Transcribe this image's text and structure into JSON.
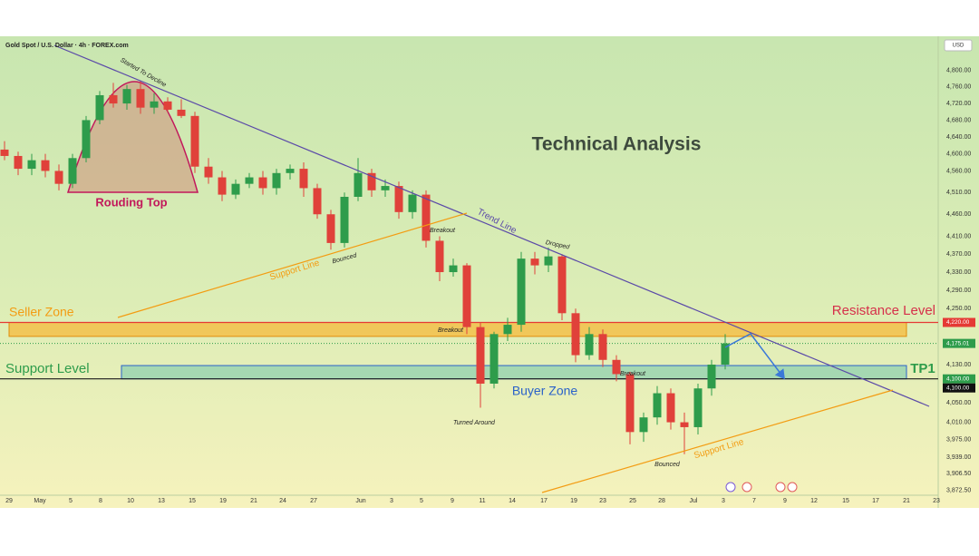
{
  "chart_data": {
    "type": "candlestick",
    "symbol": "Gold Spot / U.S. Dollar · 4h · FOREX.com",
    "currency": "USD",
    "heading": "Technical Analysis",
    "log_scale": true,
    "grid": false,
    "up_color": "#2e9c4b",
    "down_color": "#e0413a",
    "ylim": [
      3856,
      4885
    ],
    "yticks": [
      {
        "value": 4800,
        "label": "4,800.00"
      },
      {
        "value": 4760,
        "label": "4,760.00"
      },
      {
        "value": 4720,
        "label": "4,720.00"
      },
      {
        "value": 4680,
        "label": "4,680.00"
      },
      {
        "value": 4640,
        "label": "4,640.00"
      },
      {
        "value": 4600,
        "label": "4,600.00"
      },
      {
        "value": 4560,
        "label": "4,560.00"
      },
      {
        "value": 4510,
        "label": "4,510.00"
      },
      {
        "value": 4460,
        "label": "4,460.00"
      },
      {
        "value": 4410,
        "label": "4,410.00"
      },
      {
        "value": 4370,
        "label": "4,370.00"
      },
      {
        "value": 4330,
        "label": "4,330.00"
      },
      {
        "value": 4290,
        "label": "4,290.00"
      },
      {
        "value": 4250,
        "label": "4,250.00"
      },
      {
        "value": 4130,
        "label": "4,130.00"
      },
      {
        "value": 4050,
        "label": "4,050.00"
      },
      {
        "value": 4010,
        "label": "4,010.00"
      },
      {
        "value": 3975,
        "label": "3,975.00"
      },
      {
        "value": 3939,
        "label": "3,939.00"
      },
      {
        "value": 3906.5,
        "label": "3,906.50"
      },
      {
        "value": 3872.5,
        "label": "3,872.50"
      }
    ],
    "xlim": [
      0,
      103.5
    ],
    "xticks": [
      {
        "value": 1.0,
        "label": "29"
      },
      {
        "value": 4.4,
        "label": "May"
      },
      {
        "value": 7.8,
        "label": "5"
      },
      {
        "value": 11.1,
        "label": "8"
      },
      {
        "value": 14.4,
        "label": "10"
      },
      {
        "value": 17.8,
        "label": "13"
      },
      {
        "value": 21.2,
        "label": "15"
      },
      {
        "value": 24.6,
        "label": "19"
      },
      {
        "value": 28.0,
        "label": "21"
      },
      {
        "value": 31.2,
        "label": "24"
      },
      {
        "value": 34.6,
        "label": "27"
      },
      {
        "value": 39.8,
        "label": "Jun"
      },
      {
        "value": 43.2,
        "label": "3"
      },
      {
        "value": 46.5,
        "label": "5"
      },
      {
        "value": 49.9,
        "label": "9"
      },
      {
        "value": 53.2,
        "label": "11"
      },
      {
        "value": 56.5,
        "label": "14"
      },
      {
        "value": 60.0,
        "label": "17"
      },
      {
        "value": 63.3,
        "label": "19"
      },
      {
        "value": 66.5,
        "label": "23"
      },
      {
        "value": 69.8,
        "label": "25"
      },
      {
        "value": 73.0,
        "label": "28"
      },
      {
        "value": 76.5,
        "label": "Jul"
      },
      {
        "value": 79.8,
        "label": "3"
      },
      {
        "value": 83.2,
        "label": "7"
      },
      {
        "value": 86.6,
        "label": "9"
      },
      {
        "value": 89.8,
        "label": "12"
      },
      {
        "value": 93.3,
        "label": "15"
      },
      {
        "value": 96.6,
        "label": "17"
      },
      {
        "value": 100.0,
        "label": "21"
      },
      {
        "value": 103.3,
        "label": "23"
      }
    ],
    "candles": {
      "x": [
        0.5,
        2,
        3.5,
        5,
        6.5,
        8,
        9.5,
        11,
        12.5,
        14,
        15.5,
        17,
        18.5,
        20,
        21.5,
        23,
        24.5,
        26,
        27.5,
        29,
        30.5,
        32,
        33.5,
        35,
        36.5,
        38,
        39.5,
        41,
        42.5,
        44,
        45.5,
        47,
        48.5,
        50,
        51.5,
        53,
        54.5,
        56,
        57.5,
        59,
        60.5,
        62,
        63.5,
        65,
        66.5,
        68,
        69.5,
        71,
        72.5,
        74,
        75.5,
        77,
        78.5,
        80
      ],
      "open": [
        4610,
        4595,
        4565,
        4585,
        4560,
        4530,
        4590,
        4680,
        4740,
        4720,
        4755,
        4710,
        4725,
        4705,
        4690,
        4570,
        4545,
        4505,
        4530,
        4545,
        4520,
        4555,
        4565,
        4520,
        4460,
        4395,
        4500,
        4555,
        4515,
        4525,
        4465,
        4505,
        4400,
        4330,
        4345,
        4210,
        4090,
        4195,
        4215,
        4360,
        4345,
        4365,
        4240,
        4150,
        4195,
        4140,
        4110,
        3990,
        4020,
        4070,
        4010,
        4000,
        4080,
        4130
      ],
      "high": [
        4630,
        4605,
        4600,
        4600,
        4575,
        4600,
        4690,
        4750,
        4770,
        4765,
        4775,
        4745,
        4735,
        4730,
        4700,
        4590,
        4560,
        4540,
        4555,
        4560,
        4565,
        4575,
        4580,
        4530,
        4470,
        4510,
        4590,
        4565,
        4540,
        4535,
        4515,
        4515,
        4410,
        4360,
        4350,
        4220,
        4200,
        4230,
        4375,
        4375,
        4385,
        4370,
        4250,
        4210,
        4205,
        4150,
        4115,
        4030,
        4085,
        4080,
        4030,
        4090,
        4140,
        4195
      ],
      "low": [
        4585,
        4550,
        4550,
        4545,
        4515,
        4520,
        4580,
        4670,
        4710,
        4705,
        4695,
        4695,
        4700,
        4685,
        4555,
        4530,
        4490,
        4495,
        4520,
        4505,
        4505,
        4540,
        4500,
        4450,
        4380,
        4385,
        4490,
        4500,
        4500,
        4450,
        4450,
        4385,
        4310,
        4320,
        4195,
        4040,
        4080,
        4180,
        4200,
        4325,
        4330,
        4225,
        4135,
        4140,
        4125,
        4095,
        3965,
        3970,
        4005,
        3995,
        3945,
        3985,
        4065,
        4120
      ],
      "close": [
        4595,
        4565,
        4585,
        4560,
        4530,
        4590,
        4680,
        4740,
        4720,
        4755,
        4710,
        4725,
        4705,
        4690,
        4570,
        4545,
        4505,
        4530,
        4545,
        4520,
        4555,
        4565,
        4520,
        4460,
        4395,
        4500,
        4555,
        4515,
        4525,
        4465,
        4505,
        4400,
        4330,
        4345,
        4210,
        4090,
        4195,
        4215,
        4360,
        4345,
        4365,
        4240,
        4150,
        4195,
        4140,
        4110,
        3990,
        4020,
        4070,
        4010,
        4000,
        4080,
        4130,
        4175
      ]
    },
    "zones": [
      {
        "name": "Seller Zone",
        "low": 4190,
        "high": 4220,
        "color": "#f6b93b"
      },
      {
        "name": "Buyer Zone",
        "low": 4100,
        "high": 4128,
        "color": "#8fd0b0"
      }
    ],
    "levels": [
      {
        "name": "Resistance Level",
        "value": 4220,
        "color": "#e53935"
      },
      {
        "name": "Support Level",
        "value": 4100,
        "color": "#1a1a1a"
      }
    ],
    "price_tags": [
      {
        "value": 4220,
        "label": "4,220.00",
        "color": "#e53935"
      },
      {
        "value": 4175.01,
        "label": "4,175.01",
        "color": "#2e9c4b"
      },
      {
        "value": 4100,
        "label": "4,100.00",
        "color": "#2e9c4b"
      },
      {
        "value": 4100,
        "label": "4,100.00",
        "color": "#111111"
      }
    ],
    "target": "TP1",
    "annotations": [
      "Started To Decline",
      "Rouding Top",
      "Support Line",
      "Bounced",
      "Breakout",
      "Trend Line",
      "Dropped",
      "Breakout",
      "Breakout",
      "Turned Around",
      "Bounced",
      "Support Line"
    ]
  }
}
